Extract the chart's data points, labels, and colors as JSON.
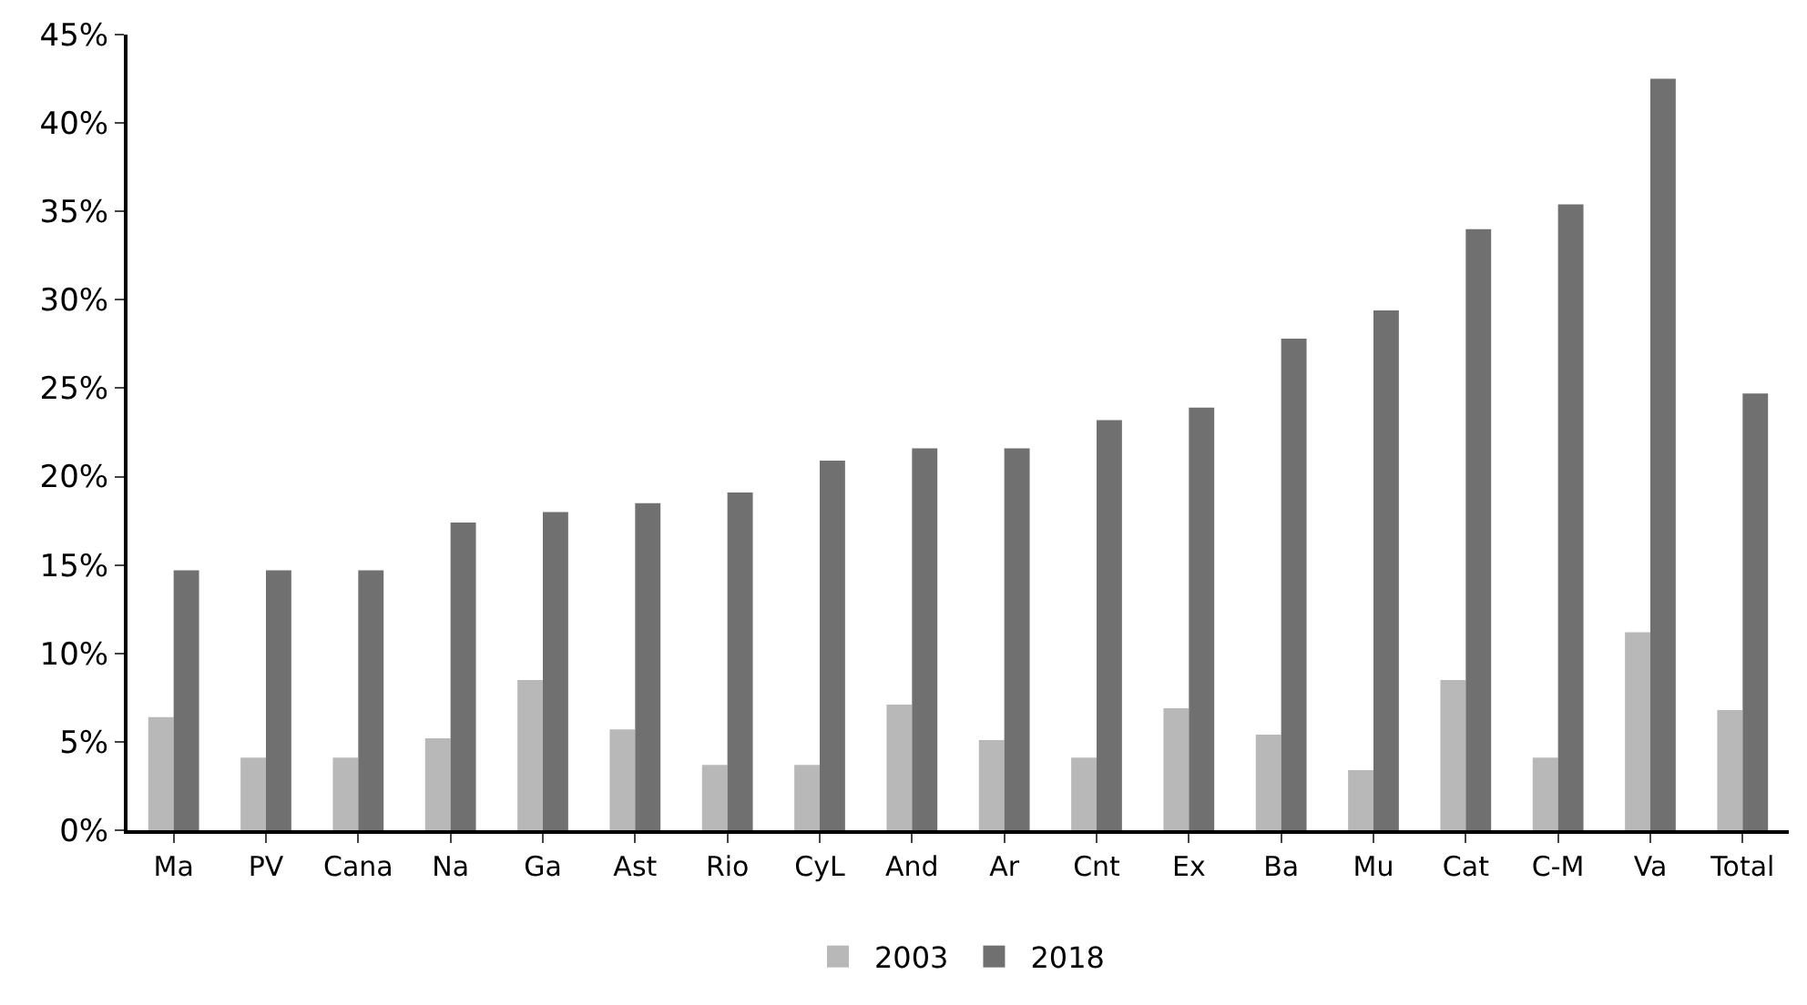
{
  "chart_data": {
    "type": "bar",
    "categories": [
      "Ma",
      "PV",
      "Cana",
      "Na",
      "Ga",
      "Ast",
      "Rio",
      "CyL",
      "And",
      "Ar",
      "Cnt",
      "Ex",
      "Ba",
      "Mu",
      "Cat",
      "C-M",
      "Va",
      "Total"
    ],
    "series": [
      {
        "name": "2003",
        "color": "#b8b8b8",
        "values": [
          6.4,
          4.1,
          4.1,
          5.2,
          8.5,
          5.7,
          3.7,
          3.7,
          7.1,
          5.1,
          4.1,
          6.9,
          5.4,
          3.4,
          8.5,
          4.1,
          11.2,
          6.8
        ]
      },
      {
        "name": "2018",
        "color": "#707070",
        "values": [
          14.7,
          14.7,
          14.7,
          17.4,
          18.0,
          18.5,
          19.1,
          20.9,
          21.6,
          21.6,
          23.2,
          23.9,
          27.8,
          29.4,
          34.0,
          35.4,
          42.5,
          24.7
        ]
      }
    ],
    "ylim": [
      0,
      45
    ],
    "yticks": [
      {
        "value": 0,
        "label": "0%"
      },
      {
        "value": 5,
        "label": "5%"
      },
      {
        "value": 10,
        "label": "10%"
      },
      {
        "value": 15,
        "label": "15%"
      },
      {
        "value": 20,
        "label": "20%"
      },
      {
        "value": 25,
        "label": "25%"
      },
      {
        "value": 30,
        "label": "30%"
      },
      {
        "value": 35,
        "label": "35%"
      },
      {
        "value": 40,
        "label": "40%"
      },
      {
        "value": 45,
        "label": "45%"
      }
    ],
    "grid": false,
    "legend": "bottom"
  }
}
